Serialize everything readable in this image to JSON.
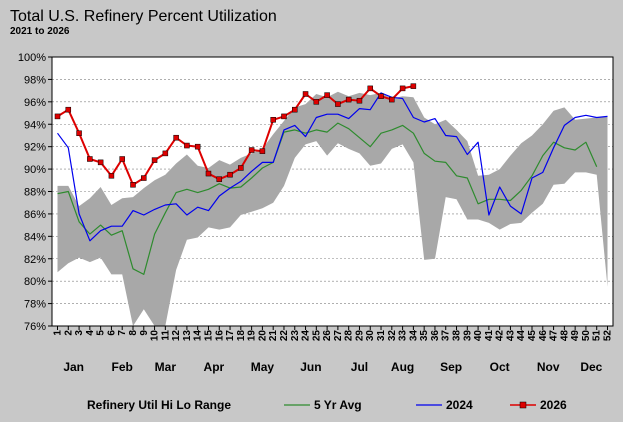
{
  "chart_data": {
    "type": "line",
    "title": "Total U.S. Refinery Percent Utilization",
    "subtitle": "2021 to 2026",
    "ylim": [
      76,
      100
    ],
    "yticks": [
      "76%",
      "78%",
      "80%",
      "82%",
      "84%",
      "86%",
      "88%",
      "90%",
      "92%",
      "94%",
      "96%",
      "98%",
      "100%"
    ],
    "x": [
      1,
      2,
      3,
      4,
      5,
      6,
      7,
      8,
      9,
      10,
      11,
      12,
      13,
      14,
      15,
      16,
      17,
      18,
      19,
      20,
      21,
      22,
      23,
      24,
      25,
      26,
      27,
      28,
      29,
      30,
      31,
      32,
      33,
      34,
      35,
      36,
      37,
      38,
      39,
      40,
      41,
      42,
      43,
      44,
      45,
      46,
      47,
      48,
      49,
      50,
      51,
      52
    ],
    "xticks": [
      "1",
      "2",
      "3",
      "4",
      "5",
      "6",
      "7",
      "8",
      "9",
      "10",
      "11",
      "12",
      "13",
      "14",
      "15",
      "16",
      "17",
      "18",
      "19",
      "20",
      "21",
      "22",
      "23",
      "24",
      "25",
      "26",
      "27",
      "28",
      "29",
      "30",
      "31",
      "32",
      "33",
      "34",
      "35",
      "36",
      "37",
      "38",
      "39",
      "40",
      "41",
      "42",
      "43",
      "44",
      "45",
      "46",
      "47",
      "48",
      "49",
      "50",
      "51",
      "52"
    ],
    "months": [
      {
        "label": "Jan",
        "center": 2.5
      },
      {
        "label": "Feb",
        "center": 7
      },
      {
        "label": "Mar",
        "center": 11
      },
      {
        "label": "Apr",
        "center": 15.5
      },
      {
        "label": "May",
        "center": 20
      },
      {
        "label": "Jun",
        "center": 24.5
      },
      {
        "label": "Jul",
        "center": 29
      },
      {
        "label": "Aug",
        "center": 33
      },
      {
        "label": "Sep",
        "center": 37.5
      },
      {
        "label": "Oct",
        "center": 42
      },
      {
        "label": "Nov",
        "center": 46.5
      },
      {
        "label": "Dec",
        "center": 50.5
      }
    ],
    "range": {
      "name": "Refinery Util Hi Lo Range",
      "color": "#a8a8a8",
      "hi": [
        88.5,
        88.5,
        86.7,
        87.4,
        88.4,
        86.8,
        87.4,
        87.5,
        88.3,
        89.0,
        89.5,
        90.5,
        91.3,
        90.3,
        90.1,
        90.8,
        90.4,
        91.0,
        91.4,
        91.8,
        93.1,
        94.3,
        95.5,
        95.8,
        96.7,
        96.4,
        96.9,
        96.5,
        96.8,
        96.6,
        96.8,
        96.3,
        96.5,
        96.4,
        94.6,
        94.0,
        94.4,
        93.5,
        92.5,
        89.4,
        89.5,
        90.0,
        91.2,
        92.3,
        93.0,
        94.0,
        95.2,
        95.5,
        94.4,
        94.5,
        94.6,
        94.7
      ],
      "lo": [
        80.8,
        81.6,
        82.1,
        81.7,
        82.1,
        80.6,
        80.6,
        75.0,
        77.5,
        75.0,
        75.0,
        81.0,
        83.7,
        83.9,
        84.8,
        84.6,
        84.8,
        85.9,
        86.2,
        86.5,
        87.0,
        88.5,
        91.0,
        92.2,
        92.5,
        91.2,
        92.3,
        91.8,
        91.4,
        90.3,
        90.5,
        91.8,
        92.2,
        90.6,
        81.9,
        82.0,
        87.5,
        87.3,
        85.5,
        85.5,
        85.2,
        84.6,
        85.1,
        85.2,
        86.1,
        86.9,
        88.6,
        88.7,
        89.7,
        89.7,
        89.5,
        79.5
      ]
    },
    "series": [
      {
        "name": "5 Yr Avg",
        "color": "#2e8b2e",
        "marker": false,
        "values": [
          87.8,
          88.0,
          85.3,
          84.2,
          85.0,
          84.1,
          84.5,
          81.1,
          80.6,
          84.2,
          86.1,
          87.9,
          88.2,
          87.9,
          88.2,
          88.7,
          88.3,
          88.4,
          89.2,
          90.1,
          90.6,
          93.3,
          93.5,
          93.2,
          93.5,
          93.3,
          94.1,
          93.6,
          92.8,
          92.0,
          93.2,
          93.5,
          93.9,
          93.2,
          91.4,
          90.7,
          90.6,
          89.4,
          89.2,
          86.9,
          87.3,
          87.3,
          87.2,
          88.1,
          89.4,
          91.2,
          92.4,
          91.9,
          91.7,
          92.4,
          90.2,
          null
        ]
      },
      {
        "name": "2024",
        "color": "#0000ee",
        "marker": false,
        "values": [
          93.2,
          91.9,
          86.0,
          83.6,
          84.5,
          84.9,
          84.9,
          86.3,
          85.9,
          86.4,
          86.8,
          86.9,
          85.9,
          86.6,
          86.3,
          87.6,
          88.3,
          88.9,
          89.8,
          90.6,
          90.6,
          93.5,
          93.9,
          92.9,
          94.6,
          94.9,
          94.9,
          94.5,
          95.4,
          95.3,
          96.8,
          96.4,
          96.3,
          94.6,
          94.2,
          94.5,
          93.0,
          92.9,
          91.3,
          92.4,
          85.9,
          88.4,
          86.7,
          86.0,
          89.2,
          89.7,
          91.9,
          93.9,
          94.6,
          94.8,
          94.6,
          94.7
        ]
      },
      {
        "name": "2026",
        "color": "#dd0000",
        "marker": true,
        "values": [
          94.7,
          95.3,
          93.2,
          90.9,
          90.6,
          89.4,
          90.9,
          88.6,
          89.2,
          90.8,
          91.4,
          92.8,
          92.1,
          92.0,
          89.6,
          89.1,
          89.5,
          90.1,
          91.7,
          91.6,
          94.4,
          94.7,
          95.3,
          96.7,
          96.0,
          96.6,
          95.8,
          96.2,
          96.1,
          97.2,
          96.5,
          96.2,
          97.2,
          97.4,
          null,
          null,
          null,
          null,
          null,
          null,
          null,
          null,
          null,
          null,
          null,
          null,
          null,
          null,
          null,
          null,
          null,
          null
        ]
      }
    ],
    "grid": "horizontal",
    "legend_position": "bottom"
  }
}
